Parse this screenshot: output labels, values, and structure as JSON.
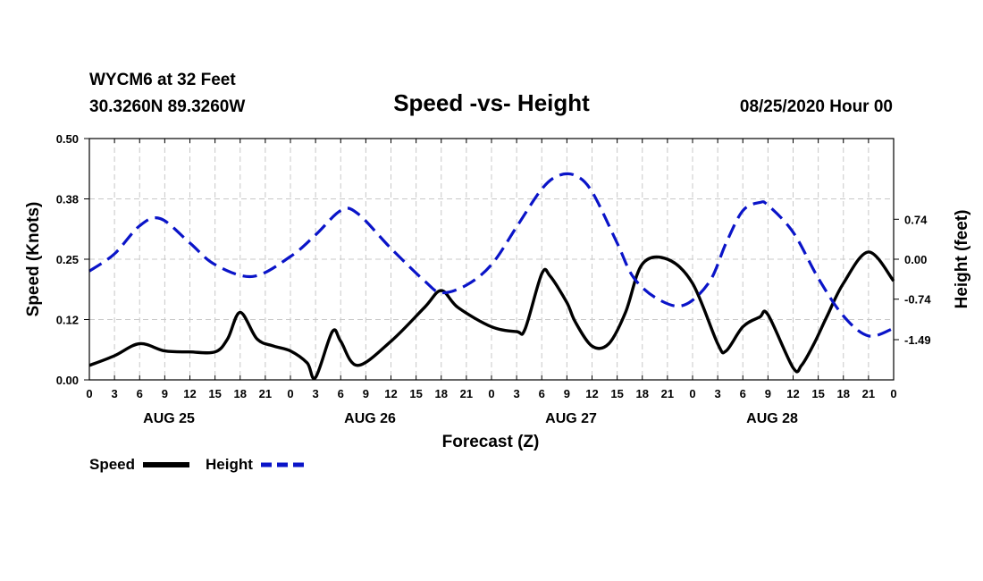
{
  "header": {
    "station": "WYCM6 at 32 Feet",
    "coords": "30.3260N 89.3260W",
    "title": "Speed -vs- Height",
    "run": "08/25/2020 Hour 00"
  },
  "legend": {
    "speed_label": "Speed",
    "height_label": "Height"
  },
  "chart_data": {
    "type": "line",
    "title": "Speed -vs- Height",
    "xlabel": "Forecast (Z)",
    "ylabel": "Speed (Knots)",
    "y2label": "Height (feet)",
    "x_hour_ticks": [
      "0",
      "3",
      "6",
      "9",
      "12",
      "15",
      "18",
      "21",
      "0",
      "3",
      "6",
      "9",
      "12",
      "15",
      "18",
      "21",
      "0",
      "3",
      "6",
      "9",
      "12",
      "15",
      "18",
      "21",
      "0",
      "3",
      "6",
      "9",
      "12",
      "15",
      "18",
      "21",
      "0"
    ],
    "day_labels": [
      "AUG 25",
      "AUG 26",
      "AUG 27",
      "AUG 28"
    ],
    "xlim_hours": [
      0,
      96
    ],
    "ylim": [
      0,
      0.5
    ],
    "y_ticks": [
      "0.00",
      "0.12",
      "0.25",
      "0.38",
      "0.50"
    ],
    "y2lim": [
      -2.235,
      2.235
    ],
    "y2_ticks": [
      "-1.49",
      "-0.74",
      "0.00",
      "0.74"
    ],
    "series": [
      {
        "name": "Speed",
        "axis": "left",
        "color": "#000000",
        "style": "solid",
        "x": [
          0,
          3,
          6,
          9,
          12,
          15,
          16.5,
          18,
          20,
          22,
          24,
          26,
          27,
          29,
          30,
          32,
          36,
          40,
          42,
          44,
          48,
          51,
          52,
          54,
          55,
          57,
          58,
          60,
          62,
          64,
          66,
          69,
          72,
          75,
          76,
          78,
          80,
          81,
          84,
          85,
          86.5,
          88,
          90,
          93,
          96
        ],
        "values": [
          0.03,
          0.05,
          0.075,
          0.06,
          0.058,
          0.058,
          0.085,
          0.14,
          0.085,
          0.07,
          0.06,
          0.035,
          0.005,
          0.1,
          0.08,
          0.03,
          0.08,
          0.15,
          0.185,
          0.15,
          0.11,
          0.1,
          0.105,
          0.22,
          0.215,
          0.16,
          0.12,
          0.07,
          0.075,
          0.14,
          0.24,
          0.25,
          0.2,
          0.075,
          0.06,
          0.11,
          0.13,
          0.135,
          0.025,
          0.03,
          0.075,
          0.13,
          0.2,
          0.265,
          0.205
        ]
      },
      {
        "name": "Height",
        "axis": "right",
        "color": "#0a14c8",
        "style": "dashed",
        "x": [
          0,
          3,
          6,
          8.5,
          12,
          15,
          19.5,
          24,
          27,
          30,
          32,
          36,
          40,
          42,
          45,
          48,
          51,
          54,
          56,
          58,
          60,
          63,
          65,
          68,
          71,
          74,
          76,
          78,
          80,
          81,
          84,
          87,
          90,
          93,
          96
        ],
        "values": [
          -0.22,
          0.1,
          0.62,
          0.75,
          0.3,
          -0.1,
          -0.32,
          0.05,
          0.45,
          0.9,
          0.85,
          0.2,
          -0.4,
          -0.62,
          -0.48,
          -0.1,
          0.6,
          1.3,
          1.55,
          1.55,
          1.25,
          0.3,
          -0.35,
          -0.75,
          -0.85,
          -0.42,
          0.3,
          0.9,
          1.05,
          1.0,
          0.5,
          -0.35,
          -1.05,
          -1.42,
          -1.28
        ]
      }
    ]
  }
}
